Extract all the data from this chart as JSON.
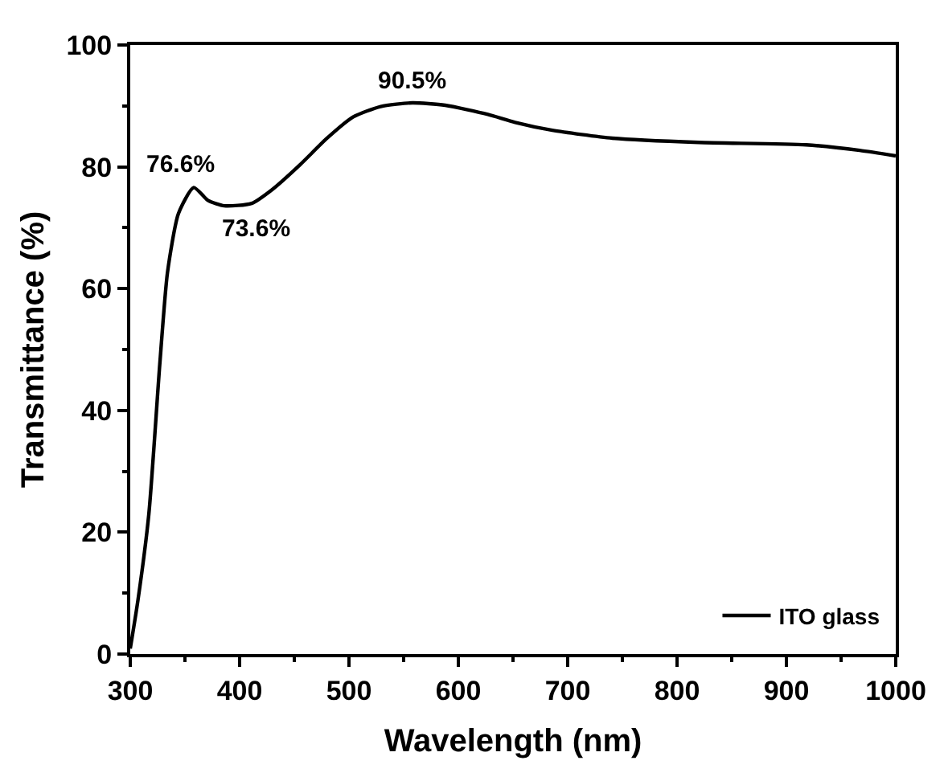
{
  "chart_data": {
    "type": "line",
    "xlabel": "Wavelength (nm)",
    "ylabel": "Transmittance (%)",
    "x": [
      300,
      307,
      317,
      327,
      334,
      344,
      358,
      371,
      386,
      411,
      430,
      455,
      480,
      504,
      529,
      558,
      588,
      627,
      652,
      686,
      741,
      820,
      918,
      967,
      1000
    ],
    "series": [
      {
        "name": "ITO glass",
        "color": "#000000",
        "values": [
          0.9,
          8.8,
          23,
          47.6,
          62.6,
          72.3,
          76.6,
          74.5,
          73.6,
          74,
          76.3,
          80.3,
          84.7,
          88.2,
          89.9,
          90.5,
          90.1,
          88.6,
          87.3,
          86.0,
          84.7,
          84.0,
          83.6,
          82.7,
          81.8
        ]
      }
    ],
    "annotations": [
      {
        "text": "76.6%",
        "x": 358,
        "y": 76.6
      },
      {
        "text": "73.6%",
        "x": 386,
        "y": 73.6
      },
      {
        "text": "90.5%",
        "x": 558,
        "y": 90.5
      }
    ],
    "xlim": [
      300,
      1000
    ],
    "ylim": [
      0,
      100
    ],
    "xticks": [
      300,
      {
        "value": 350,
        "label": null
      },
      400,
      {
        "value": 450,
        "label": null
      },
      500,
      {
        "value": 550,
        "label": null
      },
      600,
      {
        "value": 650,
        "label": null
      },
      700,
      {
        "value": 750,
        "label": null
      },
      800,
      {
        "value": 850,
        "label": null
      },
      900,
      {
        "value": 950,
        "label": null
      },
      1000
    ],
    "yticks": [
      0,
      {
        "value": 10,
        "label": null
      },
      20,
      {
        "value": 30,
        "label": null
      },
      40,
      {
        "value": 50,
        "label": null
      },
      60,
      {
        "value": 70,
        "label": null
      },
      80,
      {
        "value": 90,
        "label": null
      },
      100
    ],
    "legend": "bottom right",
    "marker": "none",
    "line_style": "solid"
  }
}
